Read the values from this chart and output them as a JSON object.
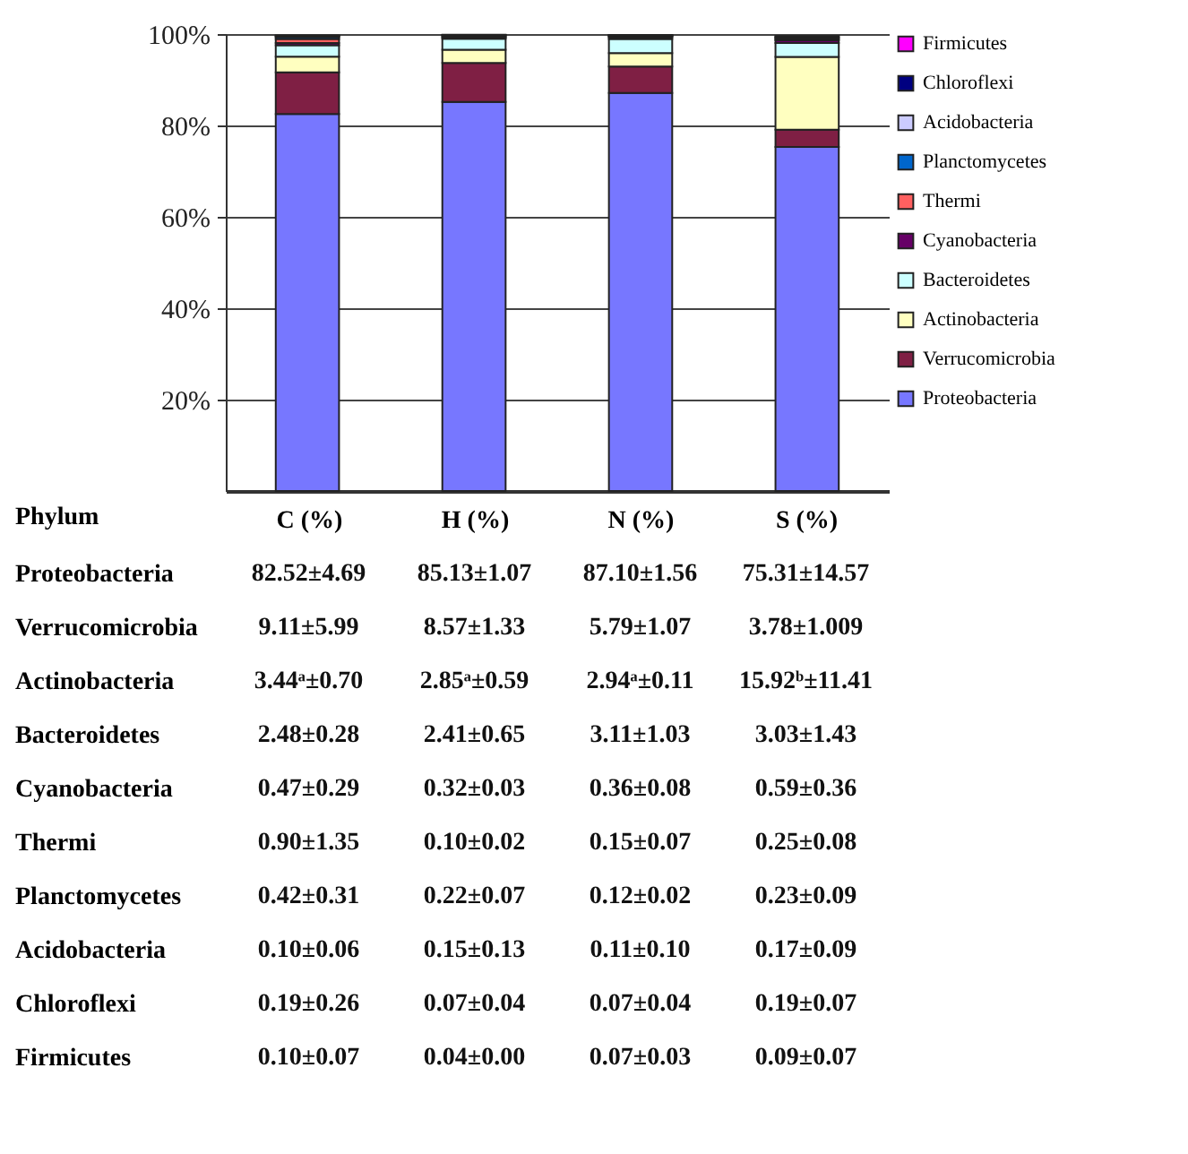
{
  "chart_data": {
    "type": "bar",
    "stacked": true,
    "xlabel": "Phylum",
    "categories": [
      "C (%)",
      "H (%)",
      "N (%)",
      "S (%)"
    ],
    "ylim": [
      0,
      100
    ],
    "yticks": [
      {
        "value": 20,
        "label": "20%"
      },
      {
        "value": 40,
        "label": "40%"
      },
      {
        "value": 60,
        "label": "60%"
      },
      {
        "value": 80,
        "label": "80%"
      },
      {
        "value": 100,
        "label": "100%"
      }
    ],
    "grid": "y",
    "legend": "right",
    "series": [
      {
        "name": "Proteobacteria",
        "color": "#7777ff",
        "values": [
          82.52,
          85.13,
          87.1,
          75.31
        ],
        "value_labels": [
          "82.52±4.69",
          "85.13±1.07",
          "87.10±1.56",
          "75.31±14.57"
        ]
      },
      {
        "name": "Verrucomicrobia",
        "color": "#7f1f44",
        "values": [
          9.11,
          8.57,
          5.79,
          3.78
        ],
        "value_labels": [
          "9.11±5.99",
          "8.57±1.33",
          "5.79±1.07",
          "3.78±1.009"
        ]
      },
      {
        "name": "Actinobacteria",
        "color": "#ffffc0",
        "values": [
          3.44,
          2.85,
          2.94,
          15.92
        ],
        "value_labels": [
          "3.44ᵃ±0.70",
          "2.85ᵃ±0.59",
          "2.94ᵃ±0.11",
          "15.92ᵇ±11.41"
        ]
      },
      {
        "name": "Bacteroidetes",
        "color": "#ccffff",
        "values": [
          2.48,
          2.41,
          3.11,
          3.03
        ],
        "value_labels": [
          "2.48±0.28",
          "2.41±0.65",
          "3.11±1.03",
          "3.03±1.43"
        ]
      },
      {
        "name": "Cyanobacteria",
        "color": "#660066",
        "values": [
          0.47,
          0.32,
          0.36,
          0.59
        ],
        "value_labels": [
          "0.47±0.29",
          "0.32±0.03",
          "0.36±0.08",
          "0.59±0.36"
        ]
      },
      {
        "name": "Thermi",
        "color": "#ff6060",
        "values": [
          0.9,
          0.1,
          0.15,
          0.25
        ],
        "value_labels": [
          "0.90±1.35",
          "0.10±0.02",
          "0.15±0.07",
          "0.25±0.08"
        ]
      },
      {
        "name": "Planctomycetes",
        "color": "#0066cc",
        "values": [
          0.42,
          0.22,
          0.12,
          0.23
        ],
        "value_labels": [
          "0.42±0.31",
          "0.22±0.07",
          "0.12±0.02",
          "0.23±0.09"
        ]
      },
      {
        "name": "Acidobacteria",
        "color": "#ccccff",
        "values": [
          0.1,
          0.15,
          0.11,
          0.17
        ],
        "value_labels": [
          "0.10±0.06",
          "0.15±0.13",
          "0.11±0.10",
          "0.17±0.09"
        ]
      },
      {
        "name": "Chloroflexi",
        "color": "#000080",
        "values": [
          0.19,
          0.07,
          0.07,
          0.19
        ],
        "value_labels": [
          "0.19±0.26",
          "0.07±0.04",
          "0.07±0.04",
          "0.19±0.07"
        ]
      },
      {
        "name": "Firmicutes",
        "color": "#ff00ff",
        "values": [
          0.1,
          0.04,
          0.07,
          0.09
        ],
        "value_labels": [
          "0.10±0.07",
          "0.04±0.00",
          "0.07±0.03",
          "0.09±0.07"
        ]
      }
    ]
  }
}
